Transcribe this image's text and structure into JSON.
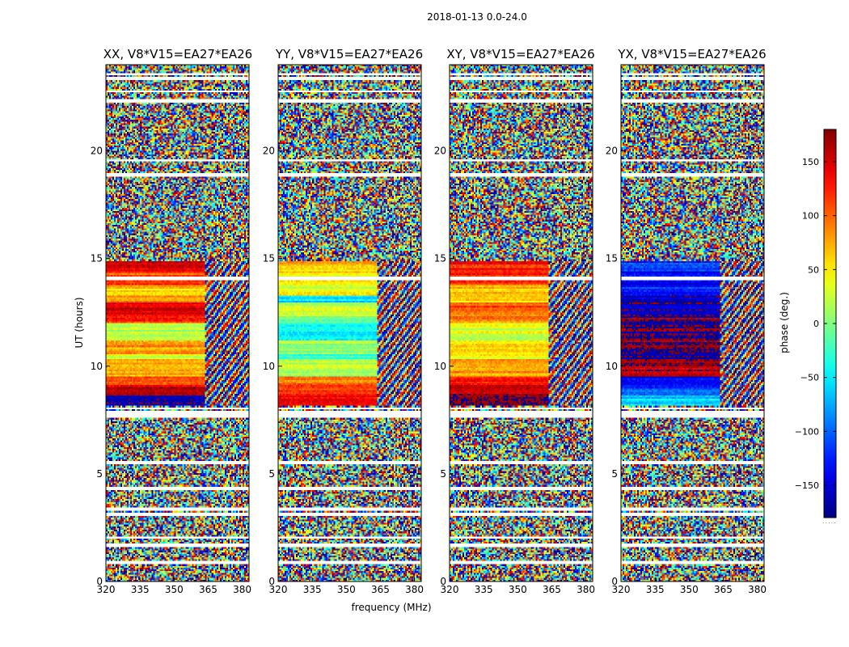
{
  "chart_data": {
    "type": "heatmap",
    "title": "2018-01-13 0.0-24.0",
    "xlabel": "frequency (MHz)",
    "ylabel": "UT (hours)",
    "colorbar_label": "phase (deg.)",
    "colorbar_footer": ".....",
    "colormap": "jet",
    "zlim": [
      -180,
      180
    ],
    "colorbar_ticks": [
      150,
      100,
      50,
      0,
      -50,
      -100,
      -150
    ],
    "colorbar_tick_labels": [
      "150",
      "100",
      "50",
      "0",
      "−50",
      "−100",
      "−150"
    ],
    "xlim": [
      320,
      383
    ],
    "ylim": [
      0,
      24
    ],
    "xticks": [
      320,
      335,
      350,
      365,
      380
    ],
    "xtick_labels": [
      "320",
      "335",
      "350",
      "365",
      "380"
    ],
    "yticks": [
      0,
      5,
      10,
      15,
      20
    ],
    "ytick_labels": [
      "0",
      "5",
      "10",
      "15",
      "20"
    ],
    "blank_rows_hours": [
      0.9,
      1.7,
      2.05,
      3.1,
      3.35,
      4.35,
      5.55,
      7.7,
      7.85,
      8.05,
      14.05,
      18.9,
      19.55,
      22.3,
      22.75,
      23.35,
      23.55
    ],
    "coherent_region": {
      "hours": [
        8.0,
        15.0
      ],
      "freq_mhz_end": 364
    },
    "panels": [
      {
        "title": "XX, V8*V15=EA27*EA26",
        "coherent_phase_bands": [
          {
            "t0": 8.2,
            "t1": 8.6,
            "phase": -160
          },
          {
            "t0": 8.6,
            "t1": 9.1,
            "phase": 150
          },
          {
            "t0": 9.1,
            "t1": 9.5,
            "phase": 110
          },
          {
            "t0": 9.5,
            "t1": 10.3,
            "phase": 70
          },
          {
            "t0": 10.3,
            "t1": 10.6,
            "phase": 30
          },
          {
            "t0": 10.6,
            "t1": 11.2,
            "phase": 80
          },
          {
            "t0": 11.2,
            "t1": 12.0,
            "phase": 15
          },
          {
            "t0": 12.0,
            "t1": 12.3,
            "phase": 120
          },
          {
            "t0": 12.3,
            "t1": 13.0,
            "phase": 150
          },
          {
            "t0": 13.0,
            "t1": 13.3,
            "phase": 90
          },
          {
            "t0": 13.3,
            "t1": 13.8,
            "phase": 60
          },
          {
            "t0": 13.8,
            "t1": 14.4,
            "phase": 110
          },
          {
            "t0": 14.4,
            "t1": 14.9,
            "phase": 140
          }
        ]
      },
      {
        "title": "YY, V8*V15=EA27*EA26",
        "coherent_phase_bands": [
          {
            "t0": 8.2,
            "t1": 8.6,
            "phase": 150
          },
          {
            "t0": 8.6,
            "t1": 9.1,
            "phase": 120
          },
          {
            "t0": 9.1,
            "t1": 9.5,
            "phase": 90
          },
          {
            "t0": 9.5,
            "t1": 10.3,
            "phase": 20
          },
          {
            "t0": 10.3,
            "t1": 10.6,
            "phase": -30
          },
          {
            "t0": 10.6,
            "t1": 11.2,
            "phase": 10
          },
          {
            "t0": 11.2,
            "t1": 12.0,
            "phase": -40
          },
          {
            "t0": 12.0,
            "t1": 12.3,
            "phase": 0
          },
          {
            "t0": 12.3,
            "t1": 13.0,
            "phase": 25
          },
          {
            "t0": 13.0,
            "t1": 13.3,
            "phase": -60
          },
          {
            "t0": 13.3,
            "t1": 13.8,
            "phase": 40
          },
          {
            "t0": 13.8,
            "t1": 14.4,
            "phase": 55
          },
          {
            "t0": 14.4,
            "t1": 14.9,
            "phase": 65
          }
        ]
      },
      {
        "title": "XY, V8*V15=EA27*EA26",
        "coherent_phase_bands": [
          {
            "t0": 8.2,
            "t1": 8.6,
            "phase": -170
          },
          {
            "t0": 8.6,
            "t1": 9.1,
            "phase": 160
          },
          {
            "t0": 9.1,
            "t1": 9.5,
            "phase": 130
          },
          {
            "t0": 9.5,
            "t1": 10.3,
            "phase": 80
          },
          {
            "t0": 10.3,
            "t1": 10.6,
            "phase": 40
          },
          {
            "t0": 10.6,
            "t1": 11.2,
            "phase": 60
          },
          {
            "t0": 11.2,
            "t1": 12.0,
            "phase": 30
          },
          {
            "t0": 12.0,
            "t1": 12.3,
            "phase": 90
          },
          {
            "t0": 12.3,
            "t1": 13.0,
            "phase": 100
          },
          {
            "t0": 13.0,
            "t1": 13.3,
            "phase": 50
          },
          {
            "t0": 13.3,
            "t1": 13.8,
            "phase": 70
          },
          {
            "t0": 13.8,
            "t1": 14.4,
            "phase": 120
          },
          {
            "t0": 14.4,
            "t1": 14.9,
            "phase": 130
          }
        ]
      },
      {
        "title": "YX, V8*V15=EA27*EA26",
        "coherent_phase_bands": [
          {
            "t0": 8.2,
            "t1": 8.6,
            "phase": -60
          },
          {
            "t0": 8.6,
            "t1": 9.1,
            "phase": -110
          },
          {
            "t0": 9.1,
            "t1": 9.5,
            "phase": -140
          },
          {
            "t0": 9.5,
            "t1": 10.3,
            "phase": 160
          },
          {
            "t0": 10.3,
            "t1": 10.6,
            "phase": -170
          },
          {
            "t0": 10.6,
            "t1": 11.2,
            "phase": 170
          },
          {
            "t0": 11.2,
            "t1": 12.0,
            "phase": -175
          },
          {
            "t0": 12.0,
            "t1": 12.3,
            "phase": 175
          },
          {
            "t0": 12.3,
            "t1": 13.0,
            "phase": -165
          },
          {
            "t0": 13.0,
            "t1": 13.3,
            "phase": -150
          },
          {
            "t0": 13.3,
            "t1": 13.8,
            "phase": -125
          },
          {
            "t0": 13.8,
            "t1": 14.4,
            "phase": -140
          },
          {
            "t0": 14.4,
            "t1": 14.9,
            "phase": -110
          }
        ]
      }
    ]
  }
}
